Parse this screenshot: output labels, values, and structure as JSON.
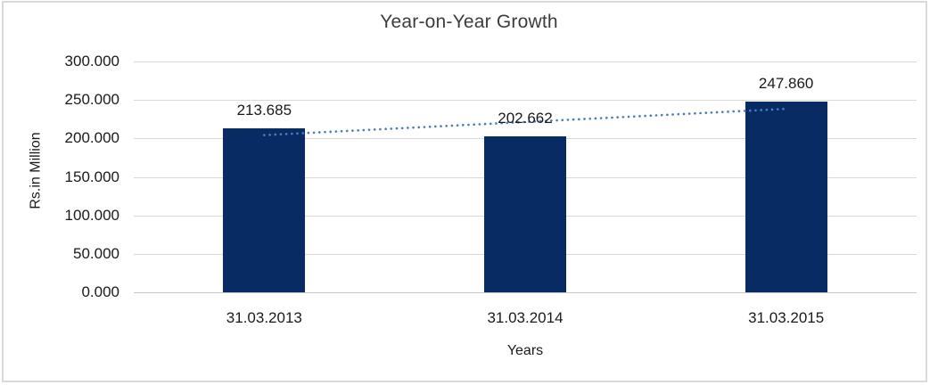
{
  "window": {
    "background": "#FFFFFF",
    "border_color": "#D9D9D9"
  },
  "chart_data": {
    "type": "bar",
    "title": "Year-on-Year Growth",
    "categories": [
      "31.03.2013",
      "31.03.2014",
      "31.03.2015"
    ],
    "values": [
      213.685,
      202.662,
      247.86
    ],
    "value_labels": [
      "213.685",
      "202.662",
      "247.860"
    ],
    "xlabel": "Years",
    "ylabel": "Rs.in Million",
    "ylim": [
      0,
      300
    ],
    "ytick_interval": 50,
    "ytick_labels": [
      "0.000",
      "50.000",
      "100.000",
      "150.000",
      "200.000",
      "250.000",
      "300.000"
    ],
    "grid": true,
    "legend": "none",
    "bar_color": "#092B63",
    "trendline": {
      "type": "linear",
      "style": "dotted",
      "color": "#4A7EBF"
    },
    "gridline_color": "#D9D9D9",
    "axis_line_color": "#C6C6C6",
    "title_color": "#3C3C3C",
    "text_color": "#1A1A1A"
  }
}
